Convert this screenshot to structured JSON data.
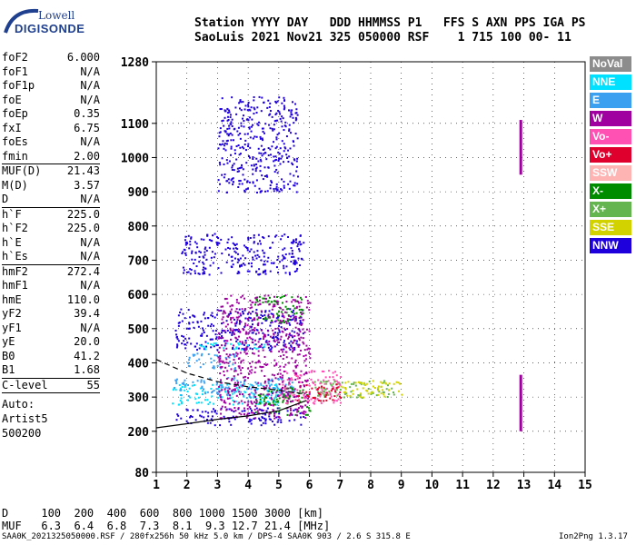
{
  "logo": {
    "line1": "Lowell",
    "line2": "DIGISONDE"
  },
  "header": {
    "row1": "Station YYYY DAY   DDD HHMMSS P1   FFS S AXN PPS IGA PS",
    "row2": "SaoLuis 2021 Nov21 325 050000 RSF    1 715 100 00- 11"
  },
  "params": [
    [
      [
        "foF2",
        "6.000"
      ],
      [
        "foF1",
        "N/A"
      ],
      [
        "foF1p",
        "N/A"
      ],
      [
        "foE",
        "N/A"
      ],
      [
        "foEp",
        "0.35"
      ],
      [
        "fxI",
        "6.75"
      ],
      [
        "foEs",
        "N/A"
      ],
      [
        "fmin",
        "2.00"
      ]
    ],
    [
      [
        "MUF(D)",
        "21.43"
      ],
      [
        "M(D)",
        "3.57"
      ],
      [
        "D",
        "N/A"
      ]
    ],
    [
      [
        "h`F",
        "225.0"
      ],
      [
        "h`F2",
        "225.0"
      ],
      [
        "h`E",
        "N/A"
      ],
      [
        "h`Es",
        "N/A"
      ]
    ],
    [
      [
        "hmF2",
        "272.4"
      ],
      [
        "hmF1",
        "N/A"
      ],
      [
        "hmE",
        "110.0"
      ],
      [
        "yF2",
        "39.4"
      ],
      [
        "yF1",
        "N/A"
      ],
      [
        "yE",
        "20.0"
      ],
      [
        "B0",
        "41.2"
      ],
      [
        "B1",
        "1.68"
      ]
    ],
    [
      [
        "C-level",
        "55"
      ]
    ]
  ],
  "auto": [
    "Auto:",
    "Artist5",
    "500200"
  ],
  "legend": [
    {
      "label": "NoVal",
      "color": "#8c8c8c"
    },
    {
      "label": "NNE",
      "color": "#00e0ff"
    },
    {
      "label": "E",
      "color": "#3ca0f0"
    },
    {
      "label": "W",
      "color": "#a000a0"
    },
    {
      "label": "Vo-",
      "color": "#ff50b4"
    },
    {
      "label": "Vo+",
      "color": "#e0002d"
    },
    {
      "label": "SSW",
      "color": "#ffb4b4"
    },
    {
      "label": "X-",
      "color": "#008c00"
    },
    {
      "label": "X+",
      "color": "#64b450"
    },
    {
      "label": "SSE",
      "color": "#d2d200"
    },
    {
      "label": "NNW",
      "color": "#1e00dc"
    }
  ],
  "bottom": {
    "row1": "D     100  200  400  600  800 1000 1500 3000 [km]",
    "row2": "MUF   6.3  6.4  6.8  7.3  8.1  9.3 12.7 21.4 [MHz]"
  },
  "footer": "SAA0K_2021325050000.RSF / 280fx256h 50 kHz 5.0 km / DPS-4 SAA0K 903 / 2.6 S 315.8 E",
  "version": "Ion2Png 1.3.17",
  "chart_data": {
    "type": "scatter",
    "title": "",
    "xlabel": "",
    "ylabel": "",
    "xlim": [
      1,
      15
    ],
    "ylim": [
      80,
      1280
    ],
    "x_ticks": [
      1,
      2,
      3,
      4,
      5,
      6,
      7,
      8,
      9,
      10,
      11,
      12,
      13,
      14,
      15
    ],
    "y_ticks": [
      80,
      200,
      300,
      400,
      500,
      600,
      700,
      800,
      900,
      1000,
      1100,
      1280
    ],
    "grid": true,
    "series": [
      {
        "color": "#1e00dc",
        "clusters": [
          [
            1.6,
            5.8,
            220,
            270
          ],
          [
            1.6,
            5.8,
            440,
            560
          ],
          [
            1.8,
            5.8,
            660,
            780
          ],
          [
            3.0,
            5.6,
            900,
            1180
          ]
        ]
      },
      {
        "color": "#00e0ff",
        "clusters": [
          [
            1.5,
            5.0,
            280,
            340
          ],
          [
            2.2,
            5.0,
            440,
            460
          ]
        ]
      },
      {
        "color": "#3ca0f0",
        "clusters": [
          [
            1.5,
            5.5,
            300,
            360
          ],
          [
            2.0,
            3.6,
            380,
            430
          ]
        ]
      },
      {
        "color": "#008c00",
        "clusters": [
          [
            4.2,
            6.0,
            250,
            330
          ],
          [
            4.2,
            5.8,
            520,
            600
          ]
        ]
      },
      {
        "color": "#64b450",
        "clusters": [
          [
            6.0,
            8.8,
            300,
            350
          ]
        ]
      },
      {
        "color": "#d2d200",
        "clusters": [
          [
            7.0,
            9.0,
            300,
            350
          ]
        ]
      },
      {
        "color": "#ff50b4",
        "clusters": [
          [
            5.0,
            7.0,
            280,
            380
          ]
        ]
      },
      {
        "color": "#e0002d",
        "clusters": [
          [
            5.5,
            7.0,
            290,
            340
          ]
        ]
      },
      {
        "color": "#a000a0",
        "clusters": [
          [
            3.0,
            6.0,
            240,
            600
          ]
        ]
      }
    ],
    "vertical_bars": [
      {
        "color": "#a000a0",
        "x": 12.9,
        "y0": 950,
        "y1": 1110
      },
      {
        "color": "#a000a0",
        "x": 12.9,
        "y0": 200,
        "y1": 365
      }
    ],
    "curves": [
      {
        "style": "solid",
        "color": "#000",
        "points": [
          [
            1,
            210
          ],
          [
            2,
            222
          ],
          [
            3,
            235
          ],
          [
            4,
            245
          ],
          [
            5,
            260
          ],
          [
            5.9,
            290
          ]
        ]
      },
      {
        "style": "dashed",
        "color": "#000",
        "points": [
          [
            1,
            410
          ],
          [
            2,
            370
          ],
          [
            3,
            345
          ],
          [
            4,
            330
          ],
          [
            5,
            320
          ],
          [
            5.8,
            310
          ]
        ]
      }
    ]
  }
}
